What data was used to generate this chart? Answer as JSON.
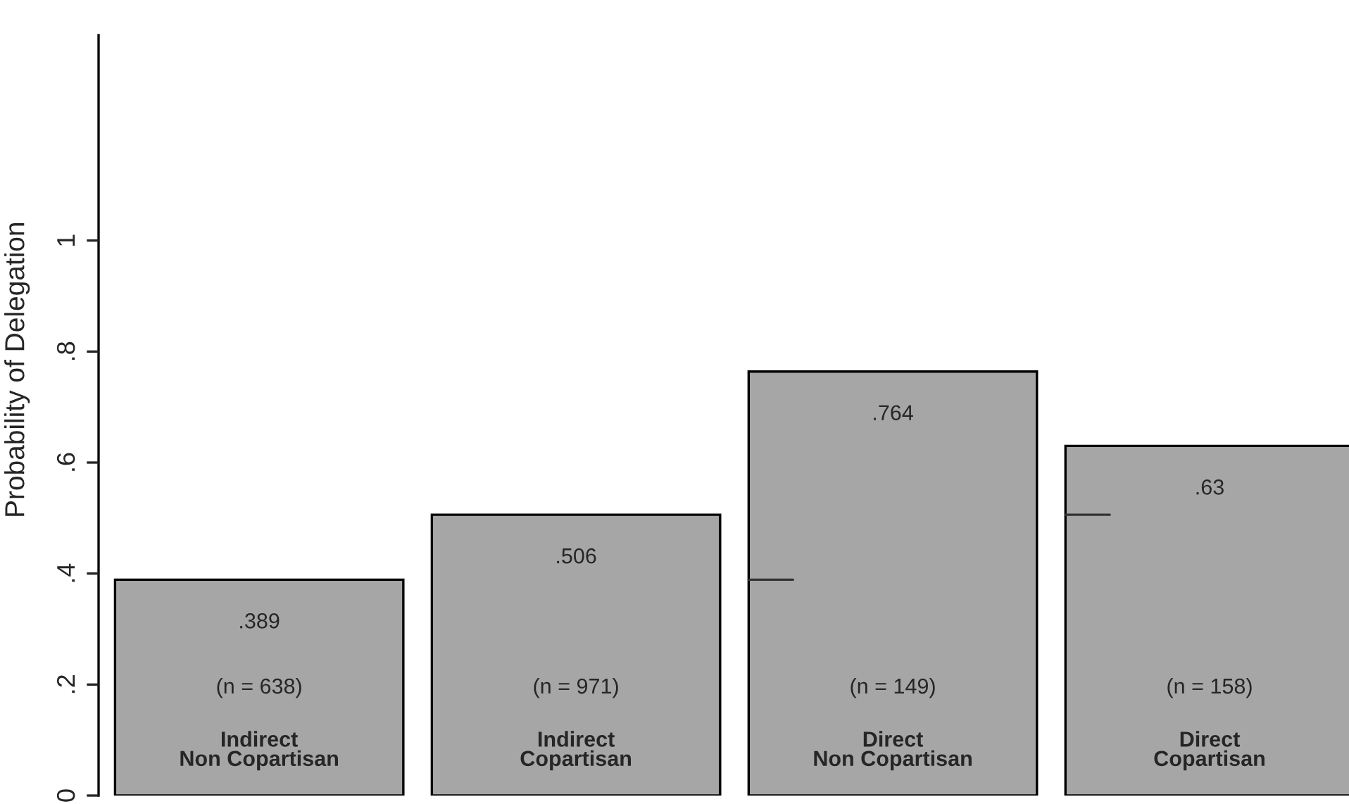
{
  "chart_data": {
    "type": "bar",
    "ylabel": "Probability of Delegation",
    "categories": [
      "Indirect\nNon Copartisan",
      "Indirect\nCopartisan",
      "Direct\nNon Copartisan",
      "Direct\nCopartisan"
    ],
    "series": [
      {
        "color": "#a6a6a6",
        "values": [
          0.389,
          0.506,
          0.764,
          0.63
        ],
        "value_labels": [
          ".389",
          ".506",
          ".764",
          ".63"
        ]
      }
    ],
    "annotations": [
      "(n = 638)",
      "(n = 971)",
      "(n = 149)",
      "(n = 158)"
    ],
    "ylim": [
      0,
      1.37
    ],
    "yticks": [
      0,
      {
        "value": 0.2,
        "label": ".2"
      },
      {
        "value": 0.4,
        "label": ".4"
      },
      {
        "value": 0.6,
        "label": ".6"
      },
      {
        "value": 0.8,
        "label": ".8"
      },
      1
    ],
    "grid": false,
    "legend": false
  }
}
